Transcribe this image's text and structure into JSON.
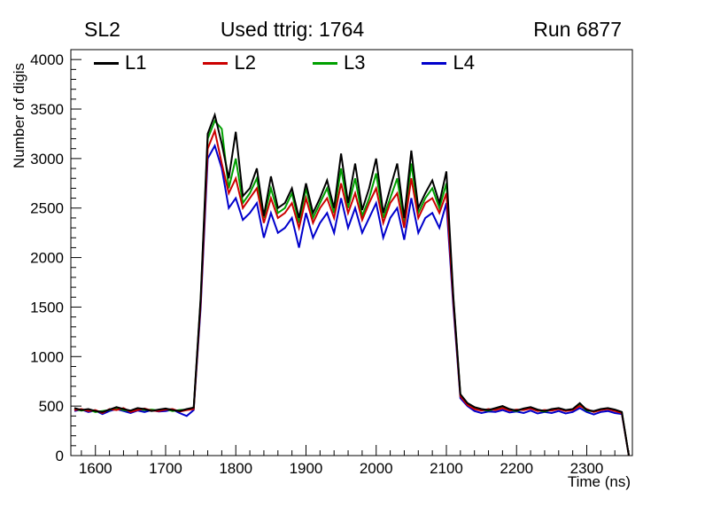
{
  "header": {
    "left": "SL2",
    "center": "Used ttrig: 1764",
    "right": "Run 6877"
  },
  "chart_data": {
    "type": "line",
    "title": "Used ttrig: 1764",
    "xlabel": "Time (ns)",
    "ylabel": "Number of digis",
    "xlim": [
      1565,
      2365
    ],
    "ylim": [
      0,
      4100
    ],
    "xticks": [
      1600,
      1700,
      1800,
      1900,
      2000,
      2100,
      2200,
      2300
    ],
    "yticks": [
      0,
      500,
      1000,
      1500,
      2000,
      2500,
      3000,
      3500,
      4000
    ],
    "x_minor_step": 20,
    "y_minor_step": 100,
    "legend_position": "top-inside",
    "grid": false,
    "x": [
      1570,
      1580,
      1590,
      1600,
      1610,
      1620,
      1630,
      1640,
      1650,
      1660,
      1670,
      1680,
      1690,
      1700,
      1710,
      1720,
      1730,
      1740,
      1750,
      1760,
      1770,
      1780,
      1790,
      1800,
      1810,
      1820,
      1830,
      1840,
      1850,
      1860,
      1870,
      1880,
      1890,
      1900,
      1910,
      1920,
      1930,
      1940,
      1950,
      1960,
      1970,
      1980,
      1990,
      2000,
      2010,
      2020,
      2030,
      2040,
      2050,
      2060,
      2070,
      2080,
      2090,
      2100,
      2110,
      2120,
      2130,
      2140,
      2150,
      2160,
      2170,
      2180,
      2190,
      2200,
      2210,
      2220,
      2230,
      2240,
      2250,
      2260,
      2270,
      2280,
      2290,
      2300,
      2310,
      2320,
      2330,
      2340,
      2350,
      2360
    ],
    "series": [
      {
        "name": "L1",
        "color": "#000000",
        "values": [
          480,
          460,
          470,
          450,
          440,
          465,
          490,
          470,
          455,
          480,
          470,
          450,
          465,
          475,
          460,
          450,
          470,
          485,
          1600,
          3250,
          3440,
          3150,
          2800,
          3270,
          2620,
          2700,
          2900,
          2420,
          2820,
          2500,
          2550,
          2700,
          2400,
          2750,
          2450,
          2600,
          2780,
          2500,
          3050,
          2550,
          2950,
          2480,
          2700,
          3000,
          2450,
          2700,
          2950,
          2400,
          3080,
          2500,
          2650,
          2780,
          2550,
          2870,
          1600,
          620,
          530,
          490,
          470,
          460,
          480,
          500,
          470,
          455,
          475,
          490,
          465,
          450,
          470,
          480,
          460,
          470,
          530,
          460,
          450,
          470,
          480,
          465,
          440,
          0
        ]
      },
      {
        "name": "L2",
        "color": "#cc0000",
        "values": [
          460,
          470,
          450,
          460,
          430,
          470,
          460,
          480,
          440,
          460,
          475,
          455,
          450,
          465,
          470,
          445,
          460,
          470,
          1550,
          3100,
          3280,
          2950,
          2650,
          2800,
          2500,
          2600,
          2700,
          2350,
          2600,
          2400,
          2450,
          2550,
          2300,
          2600,
          2350,
          2500,
          2600,
          2400,
          2750,
          2450,
          2650,
          2380,
          2550,
          2700,
          2350,
          2550,
          2650,
          2300,
          2800,
          2400,
          2550,
          2600,
          2450,
          2650,
          1550,
          600,
          510,
          470,
          455,
          470,
          460,
          480,
          455,
          465,
          460,
          475,
          450,
          460,
          455,
          470,
          450,
          460,
          500,
          470,
          440,
          460,
          470,
          450,
          430,
          0
        ]
      },
      {
        "name": "L3",
        "color": "#00a000",
        "values": [
          470,
          455,
          465,
          440,
          450,
          460,
          480,
          460,
          450,
          470,
          460,
          465,
          455,
          470,
          450,
          460,
          465,
          475,
          1580,
          3200,
          3380,
          3300,
          2700,
          3000,
          2550,
          2650,
          2800,
          2400,
          2700,
          2450,
          2500,
          2650,
          2350,
          2700,
          2400,
          2550,
          2700,
          2450,
          2900,
          2500,
          2800,
          2420,
          2600,
          2850,
          2400,
          2600,
          2800,
          2350,
          2950,
          2450,
          2600,
          2700,
          2500,
          2750,
          1580,
          610,
          520,
          480,
          460,
          455,
          470,
          490,
          460,
          450,
          470,
          480,
          455,
          445,
          465,
          475,
          455,
          465,
          510,
          455,
          445,
          465,
          475,
          460,
          435,
          0
        ]
      },
      {
        "name": "L4",
        "color": "#0000cc",
        "values": [
          450,
          465,
          440,
          455,
          420,
          450,
          470,
          450,
          430,
          455,
          440,
          460,
          445,
          450,
          465,
          430,
          400,
          460,
          1500,
          3000,
          3130,
          2900,
          2500,
          2600,
          2380,
          2450,
          2550,
          2200,
          2450,
          2250,
          2300,
          2400,
          2100,
          2450,
          2200,
          2350,
          2450,
          2250,
          2600,
          2300,
          2500,
          2250,
          2400,
          2550,
          2200,
          2400,
          2500,
          2180,
          2600,
          2250,
          2400,
          2450,
          2300,
          2550,
          1500,
          580,
          500,
          450,
          430,
          445,
          440,
          460,
          435,
          445,
          430,
          455,
          425,
          440,
          430,
          450,
          425,
          440,
          480,
          440,
          415,
          440,
          450,
          430,
          420,
          0
        ]
      }
    ]
  }
}
